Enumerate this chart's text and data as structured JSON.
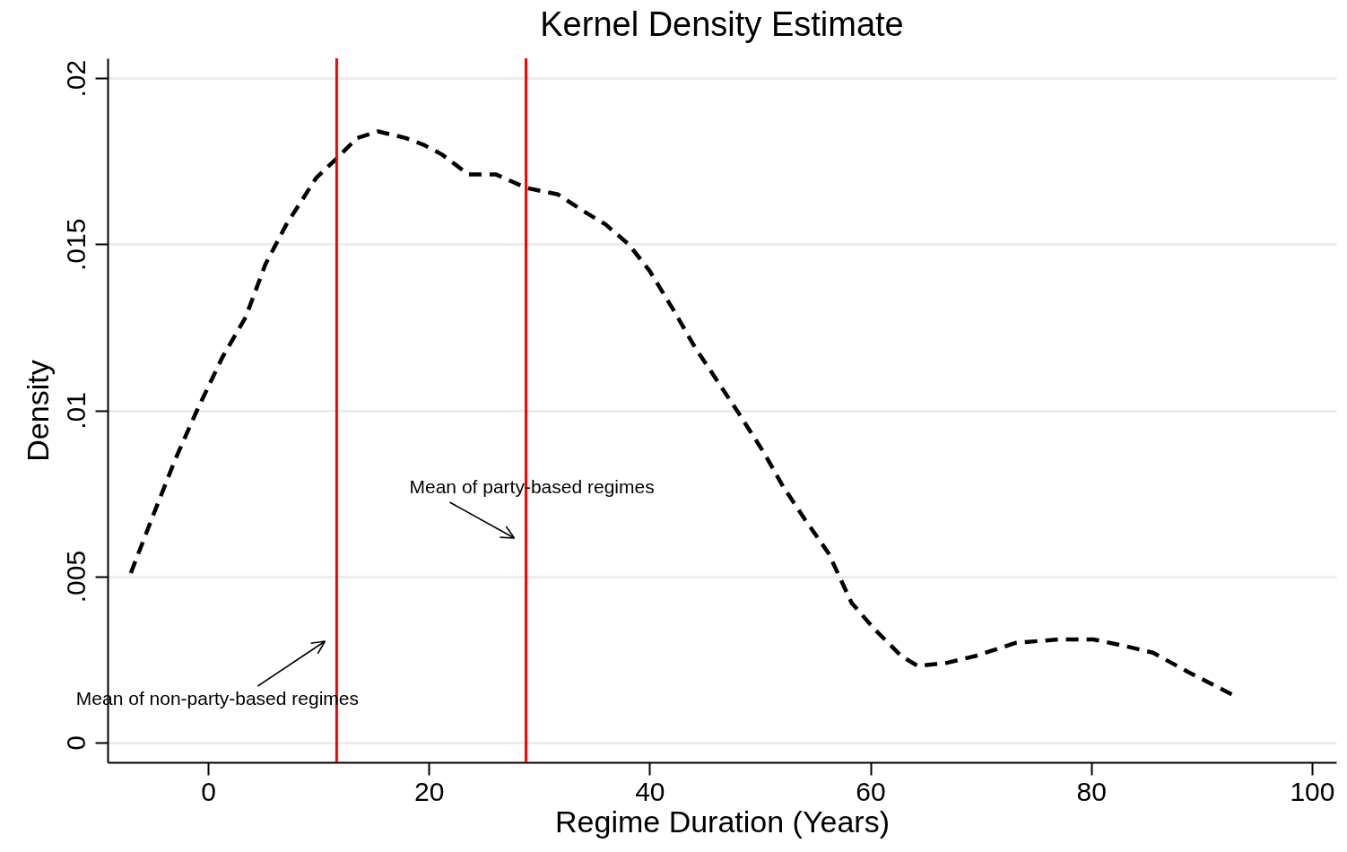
{
  "chart_data": {
    "type": "line",
    "title": "Kernel Density Estimate",
    "xlabel": "Regime Duration (Years)",
    "ylabel": "Density",
    "x": [
      -7.0,
      -4.9,
      -3.0,
      -1.0,
      1.3,
      3.4,
      5.2,
      7.1,
      9.8,
      11.7,
      13.5,
      15.4,
      17.9,
      19.5,
      21.2,
      23.6,
      26.1,
      28.8,
      31.7,
      34.0,
      36.0,
      38.1,
      40.0,
      42.2,
      44.1,
      46.1,
      47.9,
      50.4,
      52.1,
      54.1,
      56.2,
      58.3,
      60.4,
      62.8,
      64.3,
      67.0,
      69.5,
      73.2,
      77.1,
      80.2,
      83.1,
      85.6,
      88.9,
      93.0
    ],
    "series": [
      {
        "color": "#000000",
        "values": [
          0.0051,
          0.0069,
          0.0085,
          0.01,
          0.0116,
          0.0128,
          0.0144,
          0.0156,
          0.017,
          0.0176,
          0.0182,
          0.0184,
          0.0182,
          0.018,
          0.0177,
          0.0171,
          0.0171,
          0.0167,
          0.0165,
          0.016,
          0.0156,
          0.015,
          0.0142,
          0.013,
          0.0119,
          0.0109,
          0.01,
          0.0087,
          0.0077,
          0.0067,
          0.0057,
          0.0042,
          0.0034,
          0.0026,
          0.0023,
          0.0024,
          0.0026,
          0.003,
          0.0031,
          0.0031,
          0.0029,
          0.0027,
          0.0021,
          0.0014
        ]
      }
    ],
    "line_style": "dashed",
    "marker": "none",
    "xlim": [
      -9.1,
      102.2
    ],
    "xticks": [
      0,
      20,
      40,
      60,
      80,
      100
    ],
    "ylim": [
      -0.0006,
      0.0206
    ],
    "yticks": [
      {
        "value": 0,
        "label": "0"
      },
      {
        "value": 0.005,
        "label": ".005"
      },
      {
        "value": 0.01,
        "label": ".01"
      },
      {
        "value": 0.015,
        "label": ".015"
      },
      {
        "value": 0.02,
        "label": ".02"
      }
    ],
    "grid": "y",
    "ref_lines": [
      {
        "axis": "x",
        "value": 11.65,
        "color": "#ff0000",
        "label": "Mean of non-party-based regimes"
      },
      {
        "axis": "x",
        "value": 28.8,
        "color": "#ff0000",
        "label": "Mean of party-based regimes"
      }
    ]
  }
}
